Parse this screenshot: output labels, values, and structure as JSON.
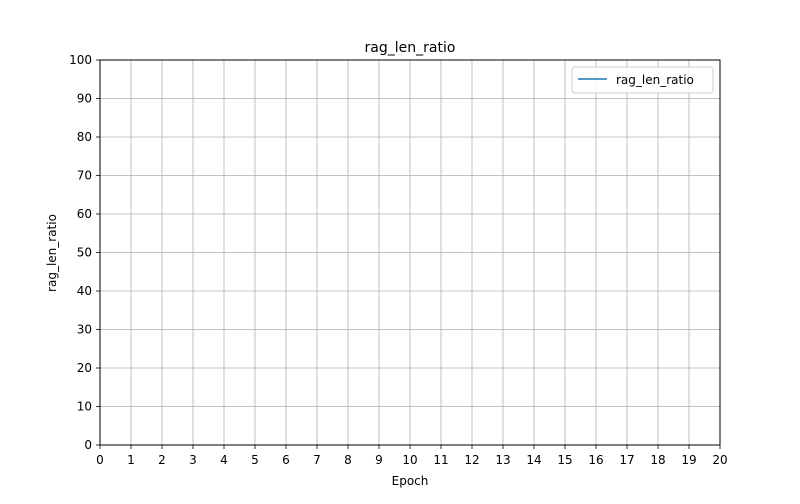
{
  "chart_data": {
    "type": "line",
    "title": "rag_len_ratio",
    "xlabel": "Epoch",
    "ylabel": "rag_len_ratio",
    "xlim": [
      0,
      20
    ],
    "ylim": [
      0,
      100
    ],
    "x_ticks": [
      0,
      1,
      2,
      3,
      4,
      5,
      6,
      7,
      8,
      9,
      10,
      11,
      12,
      13,
      14,
      15,
      16,
      17,
      18,
      19,
      20
    ],
    "y_ticks": [
      0,
      10,
      20,
      30,
      40,
      50,
      60,
      70,
      80,
      90,
      100
    ],
    "grid": true,
    "legend_position": "top-right",
    "series": [
      {
        "name": "rag_len_ratio",
        "color": "#1f77b4",
        "x": [],
        "y": []
      }
    ]
  }
}
